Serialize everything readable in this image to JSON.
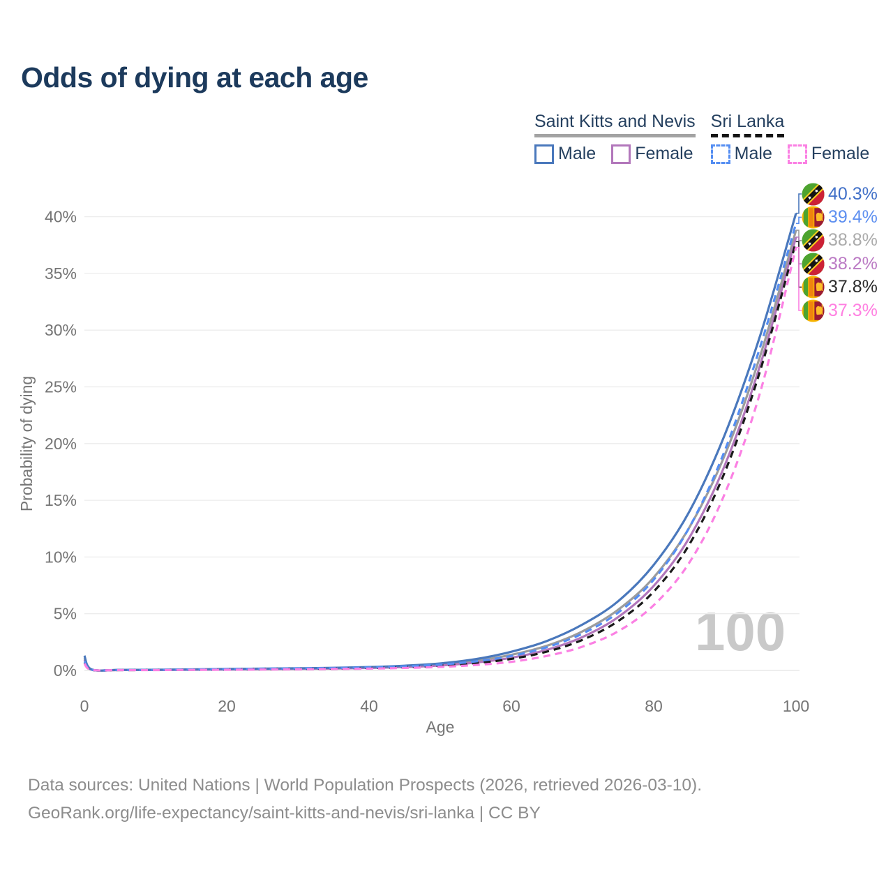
{
  "title": "Odds of dying at each age",
  "watermark": "100",
  "legend": {
    "groups": [
      {
        "label": "Saint Kitts and Nevis",
        "line_style": "solid",
        "underline_color": "#a3a3a3",
        "items": [
          {
            "label": "Male",
            "color": "#4a78bc"
          },
          {
            "label": "Female",
            "color": "#b277bb"
          }
        ]
      },
      {
        "label": "Sri Lanka",
        "line_style": "dashed",
        "underline_color": "#141414",
        "items": [
          {
            "label": "Male",
            "color": "#558ef2"
          },
          {
            "label": "Female",
            "color": "#fb80e3"
          }
        ]
      }
    ]
  },
  "chart_data": {
    "type": "line",
    "title": "Odds of dying at each age",
    "xlabel": "Age",
    "ylabel": "Probability of dying",
    "xlim": [
      0,
      100
    ],
    "ylim_percent": [
      0,
      42
    ],
    "grid": "horizontal",
    "x_ticks": [
      0,
      20,
      40,
      60,
      80,
      100
    ],
    "y_ticks_percent": [
      0,
      5,
      10,
      15,
      20,
      25,
      30,
      35,
      40
    ],
    "y_tick_labels": [
      "0%",
      "5%",
      "10%",
      "15%",
      "20%",
      "25%",
      "30%",
      "35%",
      "40%"
    ],
    "ages": [
      0,
      1,
      5,
      10,
      15,
      20,
      25,
      30,
      35,
      40,
      45,
      50,
      55,
      60,
      65,
      70,
      75,
      80,
      85,
      90,
      95,
      100
    ],
    "series": [
      {
        "name": "Saint Kitts and Nevis — Male",
        "flag": "kn",
        "dash": "solid",
        "color": "#4a78bc",
        "label_color": "#4170c8",
        "end_label": "40.3%",
        "end_value_percent": 40.3,
        "values_percent": [
          1.3,
          0.09,
          0.05,
          0.06,
          0.09,
          0.13,
          0.16,
          0.19,
          0.23,
          0.3,
          0.42,
          0.62,
          1.0,
          1.65,
          2.6,
          4.05,
          6.1,
          9.3,
          14.0,
          20.8,
          29.6,
          40.3
        ]
      },
      {
        "name": "Sri Lanka — Male",
        "flag": "lk",
        "dash": "dashed",
        "color": "#558ef2",
        "label_color": "#5d8ff0",
        "end_label": "39.4%",
        "end_value_percent": 39.4,
        "values_percent": [
          0.8,
          0.06,
          0.04,
          0.05,
          0.08,
          0.12,
          0.15,
          0.18,
          0.21,
          0.27,
          0.36,
          0.52,
          0.8,
          1.28,
          2.05,
          3.25,
          5.1,
          8.0,
          12.6,
          19.4,
          28.6,
          39.4
        ]
      },
      {
        "name": "Saint Kitts and Nevis — Both sexes",
        "flag": "kn",
        "dash": "solid",
        "color": "#9c9c9c",
        "label_color": "#ababab",
        "end_label": "38.8%",
        "end_value_percent": 38.8,
        "values_percent": [
          1.1,
          0.08,
          0.04,
          0.05,
          0.08,
          0.11,
          0.14,
          0.17,
          0.2,
          0.26,
          0.36,
          0.53,
          0.85,
          1.38,
          2.18,
          3.45,
          5.35,
          8.2,
          12.6,
          19.0,
          27.8,
          38.8
        ]
      },
      {
        "name": "Saint Kitts and Nevis — Female",
        "flag": "kn",
        "dash": "solid",
        "color": "#b277bb",
        "label_color": "#bb7ac4",
        "end_label": "38.2%",
        "end_value_percent": 38.2,
        "values_percent": [
          0.95,
          0.07,
          0.04,
          0.04,
          0.06,
          0.08,
          0.11,
          0.14,
          0.17,
          0.22,
          0.3,
          0.44,
          0.7,
          1.12,
          1.82,
          2.95,
          4.7,
          7.45,
          11.7,
          18.1,
          27.0,
          38.2
        ]
      },
      {
        "name": "Sri Lanka — Both sexes",
        "flag": "lk",
        "dash": "dashed",
        "color": "#1a1a1a",
        "label_color": "#2a2a2a",
        "end_label": "37.8%",
        "end_value_percent": 37.8,
        "values_percent": [
          0.7,
          0.05,
          0.03,
          0.04,
          0.06,
          0.09,
          0.12,
          0.14,
          0.17,
          0.22,
          0.29,
          0.42,
          0.65,
          1.02,
          1.66,
          2.7,
          4.35,
          6.95,
          11.1,
          17.5,
          26.5,
          37.8
        ]
      },
      {
        "name": "Sri Lanka — Female",
        "flag": "lk",
        "dash": "dashed",
        "color": "#fb80e3",
        "label_color": "#ff7fe1",
        "end_label": "37.3%",
        "end_value_percent": 37.3,
        "values_percent": [
          0.6,
          0.05,
          0.03,
          0.03,
          0.05,
          0.06,
          0.08,
          0.1,
          0.13,
          0.16,
          0.22,
          0.31,
          0.48,
          0.76,
          1.28,
          2.1,
          3.45,
          5.75,
          9.5,
          15.6,
          24.6,
          37.3
        ]
      }
    ],
    "annotations": {
      "watermark": "100"
    }
  },
  "footer": {
    "line1": "Data sources: United Nations | World Population Prospects (2026, retrieved 2026-03-10).",
    "line2": "GeoRank.org/life-expectancy/saint-kitts-and-nevis/sri-lanka | CC BY"
  },
  "colors": {
    "title": "#1c3a5c",
    "legend_text": "#25405f",
    "tick_text": "#757575",
    "gridline": "#ececec",
    "watermark": "#c9c9c9",
    "footer_text": "#8d8d8d",
    "flag_kn": {
      "green": "#4da32f",
      "red": "#cc2136",
      "yellow": "#ffd21c",
      "black": "#141414",
      "star": "#ffffff"
    },
    "flag_lk": {
      "gold": "#f7b500",
      "green": "#4ca32f",
      "orange": "#f0830f",
      "maroon": "#9b1b33",
      "lion": "#ffbe29"
    }
  }
}
